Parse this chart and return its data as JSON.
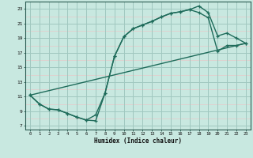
{
  "xlabel": "Humidex (Indice chaleur)",
  "bg_color": "#c8e8e0",
  "line_color": "#1e6b5a",
  "grid_red_color": "#e8c8c8",
  "grid_teal_color": "#a0c8c0",
  "xlim_min": -0.5,
  "xlim_max": 23.5,
  "ylim_min": 6.5,
  "ylim_max": 24.0,
  "xticks": [
    0,
    1,
    2,
    3,
    4,
    5,
    6,
    7,
    8,
    9,
    10,
    11,
    12,
    13,
    14,
    15,
    16,
    17,
    18,
    19,
    20,
    21,
    22,
    23
  ],
  "yticks": [
    7,
    9,
    11,
    13,
    15,
    17,
    19,
    21,
    23
  ],
  "line1_x": [
    0,
    1,
    2,
    3,
    4,
    5,
    6,
    7,
    8,
    9,
    10,
    11,
    12,
    13,
    14,
    15,
    16,
    17,
    18,
    19,
    20,
    21,
    22,
    23
  ],
  "line1_y": [
    11.2,
    10.0,
    9.3,
    9.2,
    8.7,
    8.2,
    7.8,
    7.7,
    11.5,
    16.5,
    19.2,
    20.3,
    20.8,
    21.3,
    21.9,
    22.4,
    22.6,
    22.9,
    23.4,
    22.5,
    19.3,
    19.7,
    19.0,
    18.3
  ],
  "line2_x": [
    0,
    1,
    2,
    3,
    4,
    5,
    6,
    7,
    8,
    9,
    10,
    11,
    12,
    13,
    14,
    15,
    16,
    17,
    18,
    19,
    20,
    21,
    22,
    23
  ],
  "line2_y": [
    11.2,
    10.0,
    9.3,
    9.2,
    8.7,
    8.2,
    7.8,
    8.5,
    11.5,
    16.5,
    19.2,
    20.3,
    20.8,
    21.3,
    21.9,
    22.4,
    22.6,
    22.9,
    22.5,
    21.8,
    17.2,
    18.0,
    18.0,
    18.3
  ],
  "line3_x": [
    0,
    23
  ],
  "line3_y": [
    11.2,
    18.3
  ]
}
